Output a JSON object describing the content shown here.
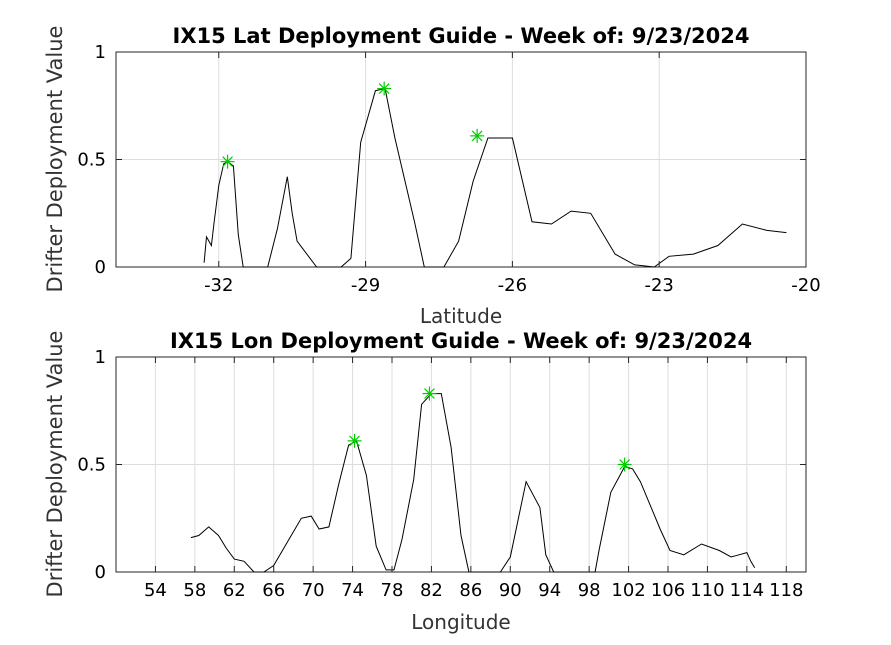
{
  "figure": {
    "background": "#ffffff",
    "line_color": "#000000",
    "marker_color": "#00cc00",
    "grid_color": "#dddddd"
  },
  "chart_data": [
    {
      "type": "line",
      "title": "IX15 Lat Deployment Guide - Week of: 9/23/2024",
      "xlabel": "Latitude",
      "ylabel": "Drifter Deployment Value",
      "xlim": [
        -34.1,
        -20
      ],
      "ylim": [
        0,
        1
      ],
      "xticks": [
        -32,
        -29,
        -26,
        -23,
        -20
      ],
      "yticks": [
        0,
        0.5,
        1
      ],
      "ytick_labels": [
        "0",
        "0.5",
        "1"
      ],
      "grid": true,
      "series": [
        {
          "x": [
            -32.3,
            -32.25,
            -32.15,
            -32.1,
            -32.0,
            -31.9,
            -31.82,
            -31.7,
            -31.6,
            -31.5,
            -31.4,
            -31.0,
            -30.8,
            -30.6,
            -30.5,
            -30.4,
            -30.0,
            -29.5,
            -29.3,
            -29.1,
            -28.8,
            -28.6,
            -28.4,
            -28.0,
            -27.8,
            -27.4,
            -27.1,
            -26.8,
            -26.5,
            -26.0,
            -25.6,
            -25.2,
            -24.8,
            -24.4,
            -23.9,
            -23.5,
            -23.1,
            -22.8,
            -22.3,
            -21.8,
            -21.3,
            -20.8,
            -20.4
          ],
          "y": [
            0.02,
            0.14,
            0.1,
            0.2,
            0.38,
            0.48,
            0.49,
            0.47,
            0.15,
            0.0,
            0.0,
            0.0,
            0.18,
            0.42,
            0.25,
            0.12,
            0.0,
            0.0,
            0.04,
            0.58,
            0.82,
            0.83,
            0.6,
            0.21,
            0.0,
            0.0,
            0.12,
            0.4,
            0.6,
            0.6,
            0.21,
            0.2,
            0.26,
            0.25,
            0.06,
            0.01,
            0.0,
            0.05,
            0.06,
            0.1,
            0.2,
            0.17,
            0.16
          ]
        }
      ],
      "peaks": {
        "x": [
          -31.82,
          -28.62,
          -26.72
        ],
        "y": [
          0.49,
          0.83,
          0.61
        ]
      }
    },
    {
      "type": "line",
      "title": "IX15 Lon Deployment Guide - Week of: 9/23/2024",
      "xlabel": "Longitude",
      "ylabel": "Drifter Deployment Value",
      "xlim": [
        50,
        120
      ],
      "ylim": [
        0,
        1
      ],
      "xticks": [
        54,
        58,
        62,
        66,
        70,
        74,
        78,
        82,
        86,
        90,
        94,
        98,
        102,
        106,
        110,
        114,
        118
      ],
      "xtick_labels": [
        "54",
        "58",
        "62",
        "66",
        "70",
        "74",
        "78",
        "82",
        "86",
        "90",
        "94",
        "98",
        "102",
        "106",
        "110",
        "114",
        "118"
      ],
      "yticks": [
        0,
        0.5,
        1
      ],
      "ytick_labels": [
        "0",
        "0.5",
        "1"
      ],
      "grid": true,
      "series": [
        {
          "x": [
            57.6,
            58.4,
            59.4,
            60.4,
            61.2,
            62.0,
            63.0,
            64.0,
            65.0,
            66.0,
            67.4,
            68.8,
            69.8,
            70.6,
            71.6,
            72.6,
            73.6,
            74.4,
            75.4,
            76.4,
            77.4,
            78.2,
            79.0,
            80.2,
            81.0,
            82.0,
            83.0,
            84.0,
            85.0,
            85.8,
            87.0,
            88.0,
            89.0,
            90.0,
            91.6,
            93.0,
            93.6,
            94.4,
            95.4,
            97.0,
            98.6,
            99.0,
            100.2,
            101.6,
            102.4,
            103.2,
            104.2,
            105.2,
            106.2,
            107.6,
            109.4,
            111.2,
            112.4,
            113.2,
            114.0,
            114.4,
            114.8
          ],
          "y": [
            0.16,
            0.17,
            0.21,
            0.17,
            0.11,
            0.06,
            0.05,
            0.0,
            0.0,
            0.03,
            0.14,
            0.25,
            0.26,
            0.2,
            0.21,
            0.41,
            0.59,
            0.61,
            0.45,
            0.12,
            0.01,
            0.01,
            0.15,
            0.43,
            0.78,
            0.83,
            0.83,
            0.58,
            0.17,
            0.0,
            0.0,
            0.0,
            0.0,
            0.07,
            0.42,
            0.3,
            0.08,
            0.0,
            0.0,
            0.0,
            0.0,
            0.1,
            0.37,
            0.49,
            0.48,
            0.42,
            0.31,
            0.2,
            0.1,
            0.08,
            0.13,
            0.1,
            0.07,
            0.08,
            0.09,
            0.05,
            0.02
          ]
        }
      ],
      "peaks": {
        "x": [
          74.2,
          81.8,
          101.6
        ],
        "y": [
          0.61,
          0.83,
          0.5
        ]
      }
    }
  ]
}
